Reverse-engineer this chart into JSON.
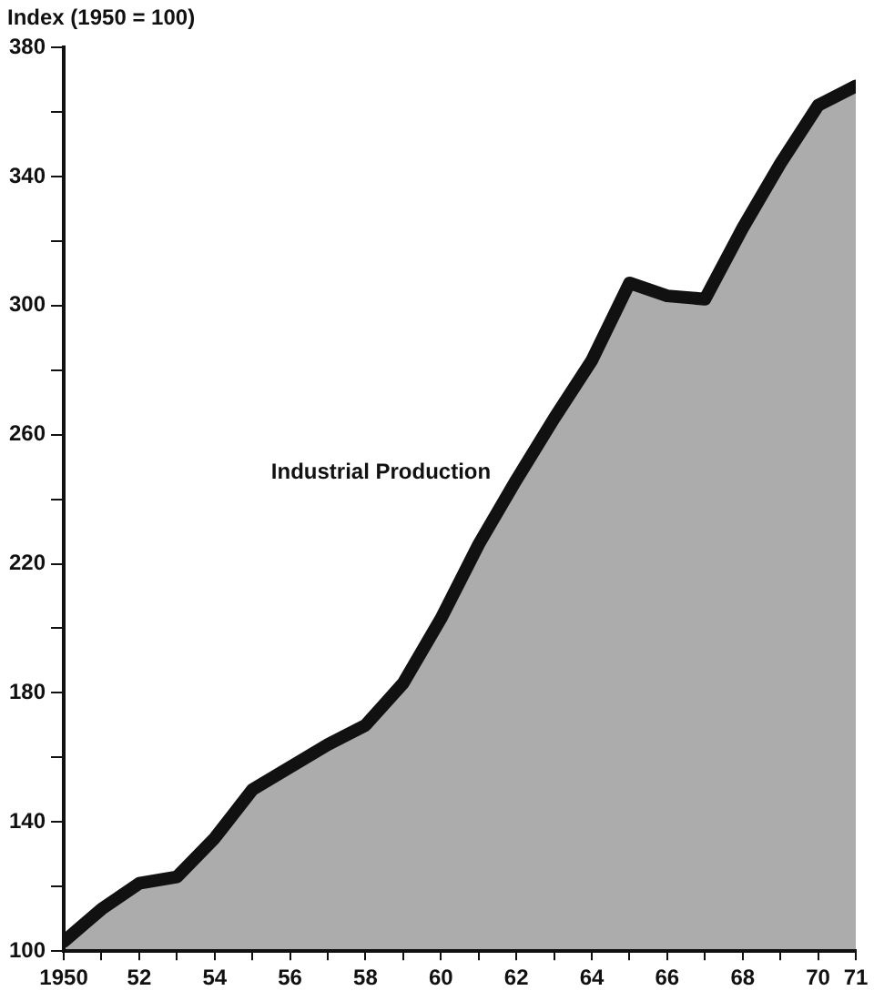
{
  "chart_data": {
    "type": "area",
    "ylabel": "Index (1950 = 100)",
    "x": [
      1950,
      1951,
      1952,
      1953,
      1954,
      1955,
      1956,
      1957,
      1958,
      1959,
      1960,
      1961,
      1962,
      1963,
      1964,
      1965,
      1966,
      1967,
      1968,
      1969,
      1970,
      1971
    ],
    "series": [
      {
        "name": "Industrial Production",
        "color": "#111111",
        "values": [
          103,
          113,
          121,
          123,
          135,
          150,
          157,
          164,
          170,
          183,
          203,
          226,
          246,
          265,
          283,
          307,
          303,
          302,
          324,
          344,
          362,
          368
        ]
      }
    ],
    "xlim": [
      1950,
      1971
    ],
    "xticks": [
      1950,
      {
        "value": 1951,
        "label": null
      },
      {
        "value": 1952,
        "label": "52"
      },
      {
        "value": 1953,
        "label": null
      },
      {
        "value": 1954,
        "label": "54"
      },
      {
        "value": 1955,
        "label": null
      },
      {
        "value": 1956,
        "label": "56"
      },
      {
        "value": 1957,
        "label": null
      },
      {
        "value": 1958,
        "label": "58"
      },
      {
        "value": 1959,
        "label": null
      },
      {
        "value": 1960,
        "label": "60"
      },
      {
        "value": 1961,
        "label": null
      },
      {
        "value": 1962,
        "label": "62"
      },
      {
        "value": 1963,
        "label": null
      },
      {
        "value": 1964,
        "label": "64"
      },
      {
        "value": 1965,
        "label": null
      },
      {
        "value": 1966,
        "label": "66"
      },
      {
        "value": 1967,
        "label": null
      },
      {
        "value": 1968,
        "label": "68"
      },
      {
        "value": 1969,
        "label": null
      },
      {
        "value": 1970,
        "label": "70"
      },
      {
        "value": 1971,
        "label": "71"
      }
    ],
    "ylim": [
      100,
      380
    ],
    "yticks": [
      100,
      {
        "value": 120,
        "label": null
      },
      140,
      {
        "value": 160,
        "label": null
      },
      180,
      {
        "value": 200,
        "label": null
      },
      220,
      {
        "value": 240,
        "label": null
      },
      260,
      {
        "value": 280,
        "label": null
      },
      300,
      {
        "value": 320,
        "label": null
      },
      340,
      {
        "value": 360,
        "label": null
      },
      380
    ],
    "grid": false,
    "legend": false,
    "marker": "none"
  }
}
